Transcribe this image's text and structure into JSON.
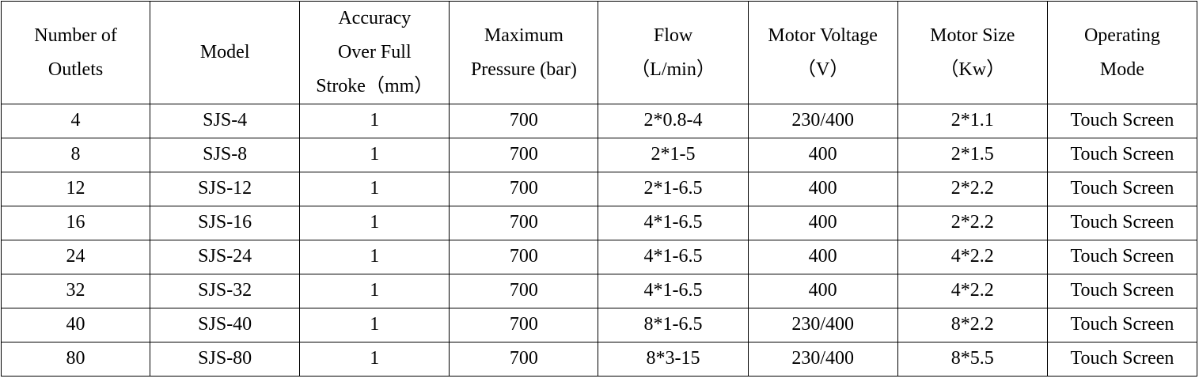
{
  "table": {
    "headers": [
      "Number of\nOutlets",
      "Model",
      "Accuracy\nOver Full\nStroke（mm）",
      "Maximum\nPressure (bar)",
      "Flow\n（L/min）",
      "Motor Voltage\n（V）",
      "Motor Size\n（Kw）",
      "Operating\nMode"
    ],
    "rows": [
      [
        "4",
        "SJS-4",
        "1",
        "700",
        "2*0.8-4",
        "230/400",
        "2*1.1",
        "Touch Screen"
      ],
      [
        "8",
        "SJS-8",
        "1",
        "700",
        "2*1-5",
        "400",
        "2*1.5",
        "Touch Screen"
      ],
      [
        "12",
        "SJS-12",
        "1",
        "700",
        "2*1-6.5",
        "400",
        "2*2.2",
        "Touch Screen"
      ],
      [
        "16",
        "SJS-16",
        "1",
        "700",
        "4*1-6.5",
        "400",
        "2*2.2",
        "Touch Screen"
      ],
      [
        "24",
        "SJS-24",
        "1",
        "700",
        "4*1-6.5",
        "400",
        "4*2.2",
        "Touch Screen"
      ],
      [
        "32",
        "SJS-32",
        "1",
        "700",
        "4*1-6.5",
        "400",
        "4*2.2",
        "Touch Screen"
      ],
      [
        "40",
        "SJS-40",
        "1",
        "700",
        "8*1-6.5",
        "230/400",
        "8*2.2",
        "Touch Screen"
      ],
      [
        "80",
        "SJS-80",
        "1",
        "700",
        "8*3-15",
        "230/400",
        "8*5.5",
        "Touch Screen"
      ]
    ]
  }
}
